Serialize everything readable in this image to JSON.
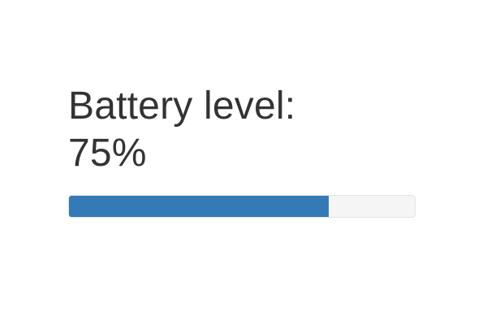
{
  "battery": {
    "label": "Battery level:",
    "value_text": "75%",
    "level_percent": 75
  },
  "colors": {
    "fill": "#337ab7",
    "track": "#f5f5f5",
    "text": "#333333"
  }
}
